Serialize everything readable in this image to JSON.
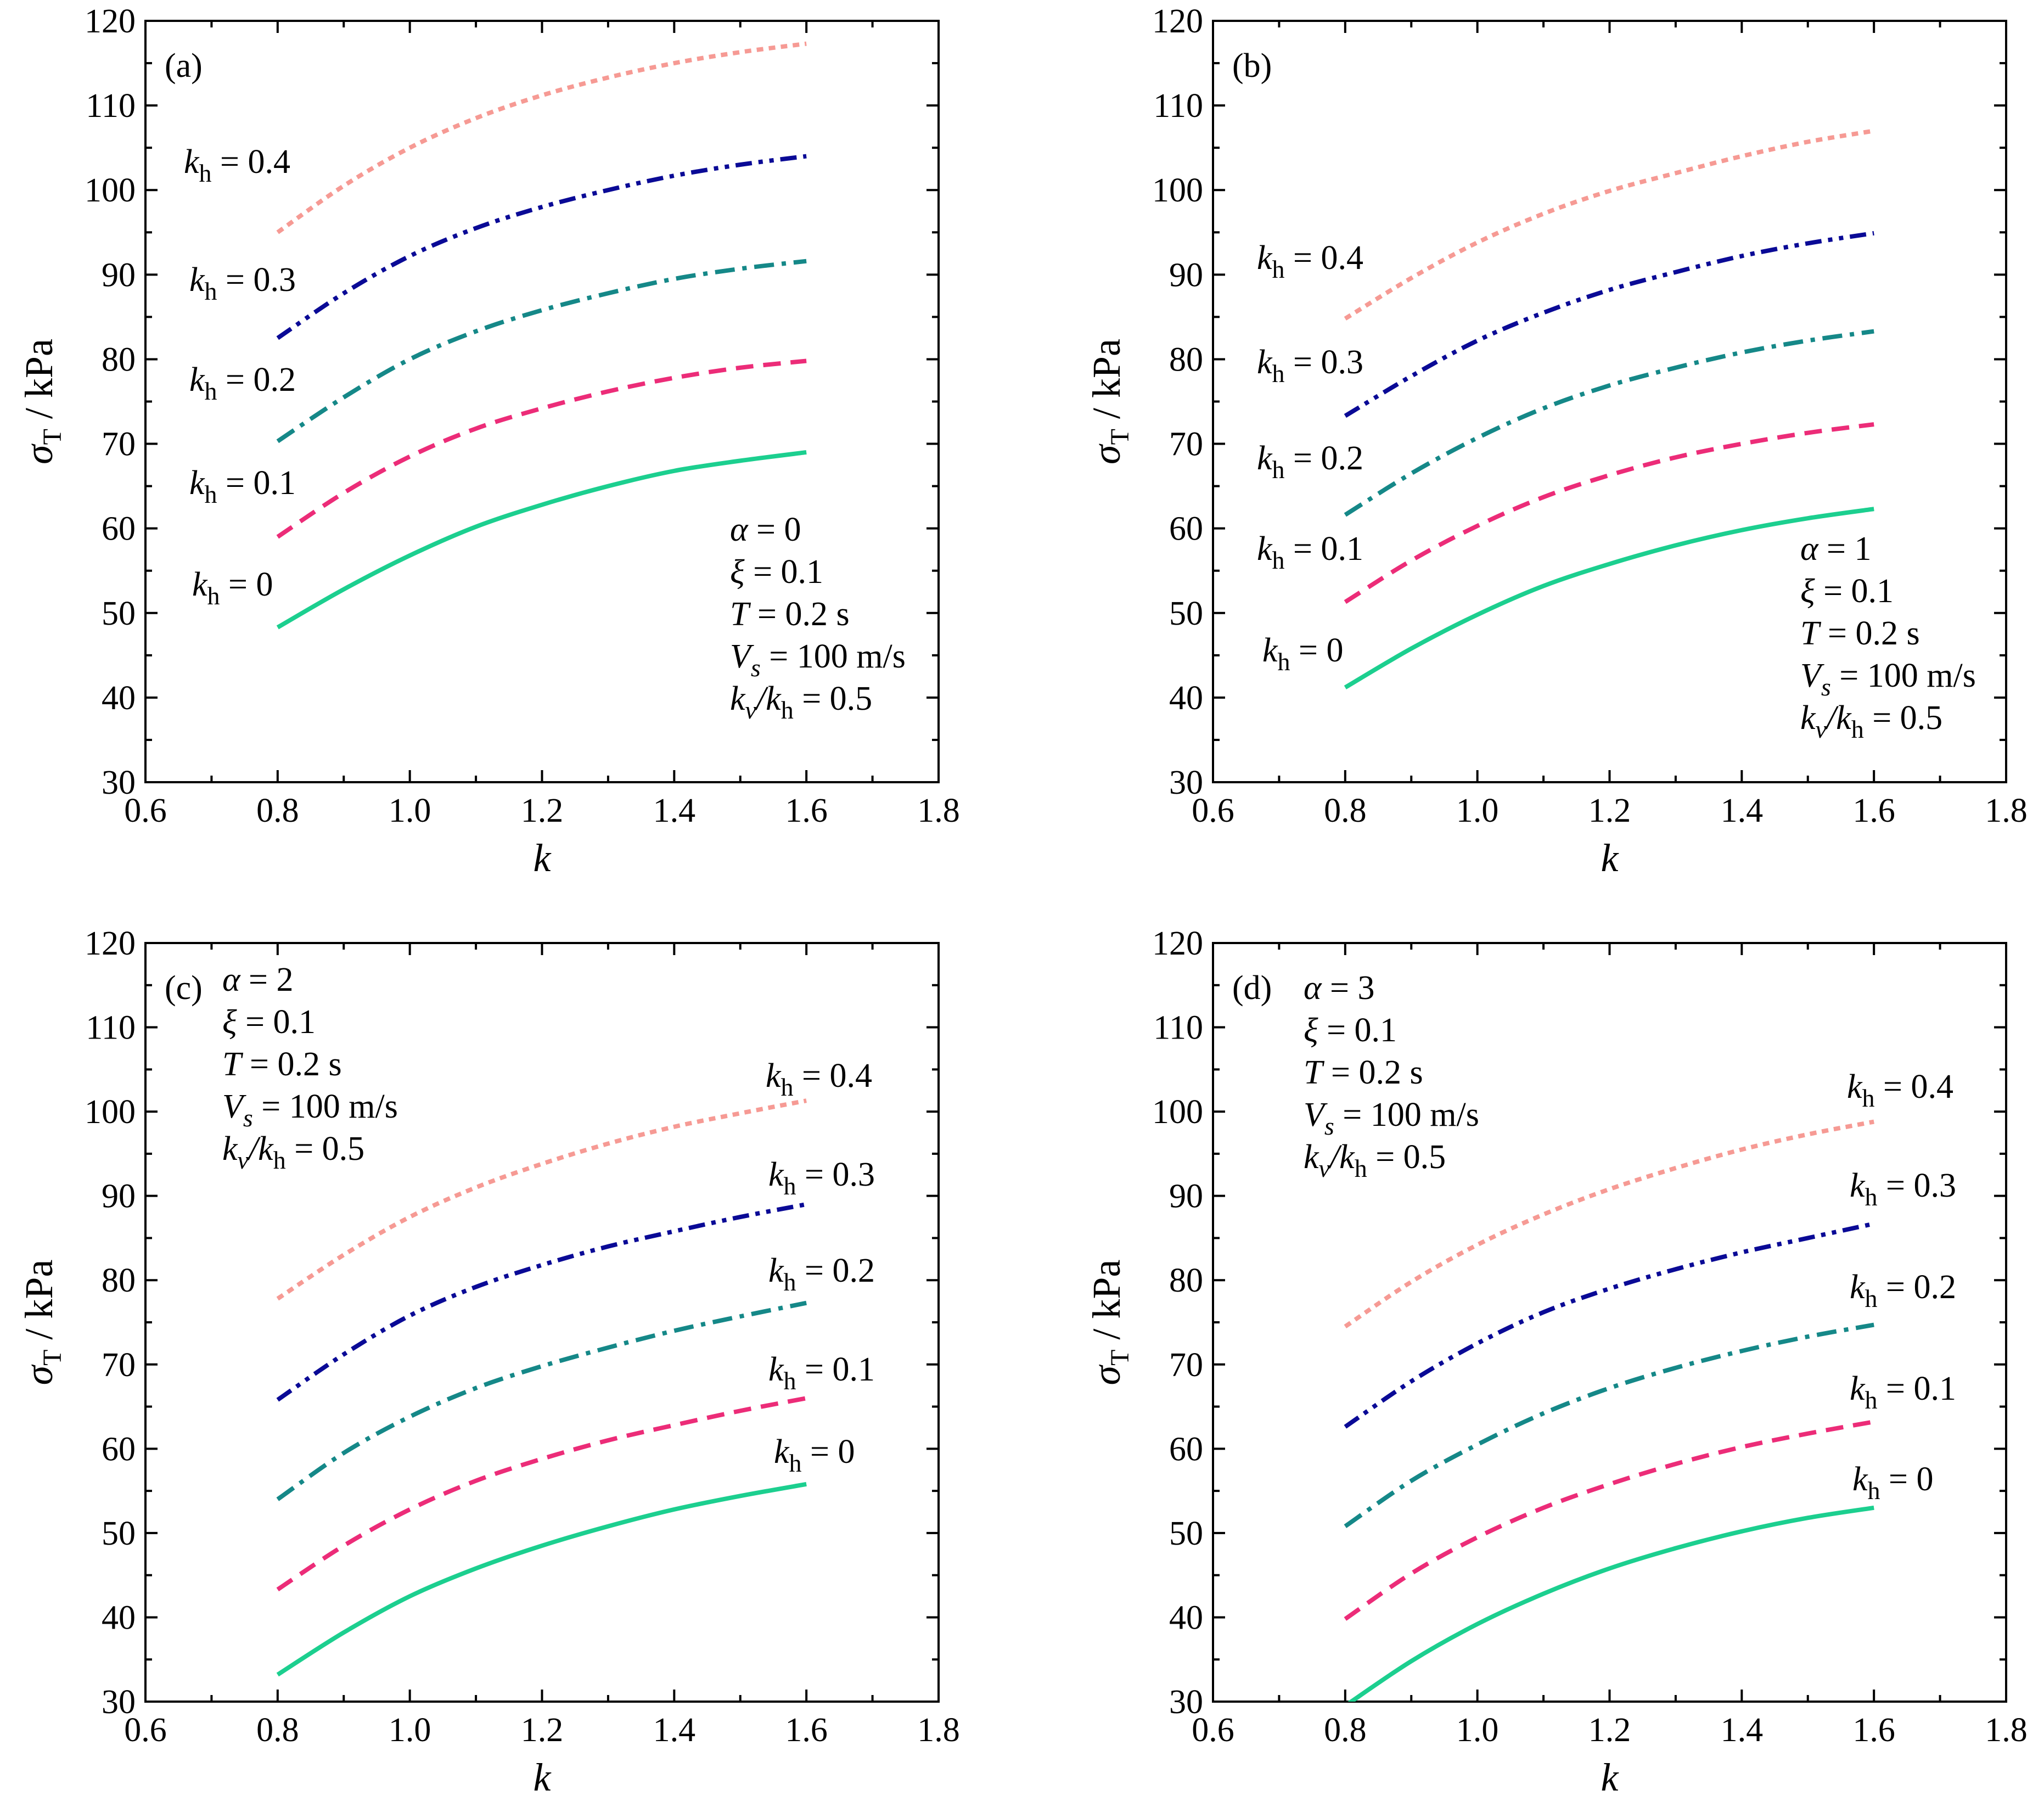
{
  "chart_data": [
    {
      "type": "line",
      "panel_label": "(a)",
      "xlabel": "k",
      "ylabel": {
        "main": "σ",
        "sub": "T",
        "rest": " / kPa"
      },
      "xlim": [
        0.6,
        1.8
      ],
      "ylim": [
        30,
        120
      ],
      "xticks": [
        "0.6",
        "0.8",
        "1.0",
        "1.2",
        "1.4",
        "1.6",
        "1.8"
      ],
      "yticks": [
        "30",
        "40",
        "50",
        "60",
        "70",
        "80",
        "90",
        "100",
        "110",
        "120"
      ],
      "grid": false,
      "legend": "none",
      "x": [
        0.8,
        0.9,
        1.0,
        1.1,
        1.2,
        1.3,
        1.4,
        1.5,
        1.6
      ],
      "series": [
        {
          "name": "kh = 0",
          "label": {
            "k": "k",
            "sub": "h",
            "val": " = 0"
          },
          "color": "#1ccf8f",
          "dash": "solid",
          "values": [
            48.3,
            52.8,
            56.8,
            60.2,
            62.8,
            65.0,
            66.8,
            68.0,
            69.0
          ]
        },
        {
          "name": "kh = 0.1",
          "label": {
            "k": "k",
            "sub": "h",
            "val": " = 0.1"
          },
          "color": "#ec2c78",
          "dash": "dash",
          "values": [
            59.0,
            64.2,
            68.5,
            71.8,
            74.2,
            76.2,
            77.8,
            79.0,
            79.8
          ]
        },
        {
          "name": "kh = 0.2",
          "label": {
            "k": "k",
            "sub": "h",
            "val": " = 0.2"
          },
          "color": "#158888",
          "dash": "dashdot",
          "values": [
            70.3,
            75.5,
            80.0,
            83.3,
            85.8,
            87.8,
            89.5,
            90.7,
            91.6
          ]
        },
        {
          "name": "kh = 0.3",
          "label": {
            "k": "k",
            "sub": "h",
            "val": " = 0.3"
          },
          "color": "#0a0a96",
          "dash": "dashdotdot",
          "values": [
            82.5,
            87.8,
            92.2,
            95.5,
            98.0,
            100.0,
            101.7,
            103.0,
            104.0
          ]
        },
        {
          "name": "kh = 0.4",
          "label": {
            "k": "k",
            "sub": "h",
            "val": " = 0.4"
          },
          "color": "#f69a94",
          "dash": "dot",
          "values": [
            95.0,
            100.5,
            105.0,
            108.5,
            111.2,
            113.3,
            115.0,
            116.3,
            117.3
          ]
        }
      ],
      "params": [
        {
          "sym": "α",
          "sub": "",
          "rest": " = 0"
        },
        {
          "sym": "ξ",
          "sub": "",
          "rest": " = 0.1"
        },
        {
          "sym": "T",
          "sub": "",
          "rest": " = 0.2 s"
        },
        {
          "sym": "V",
          "sub": "s",
          "rest": " = 100 m/s"
        },
        {
          "sym": "k",
          "sub": "v",
          "rest2sym": "/k",
          "rest2sub": "h",
          "rest": " = 0.5"
        }
      ]
    },
    {
      "type": "line",
      "panel_label": "(b)",
      "xlabel": "k",
      "ylabel": {
        "main": "σ",
        "sub": "T",
        "rest": " / kPa"
      },
      "xlim": [
        0.6,
        1.8
      ],
      "ylim": [
        30,
        120
      ],
      "xticks": [
        "0.6",
        "0.8",
        "1.0",
        "1.2",
        "1.4",
        "1.6",
        "1.8"
      ],
      "yticks": [
        "30",
        "40",
        "50",
        "60",
        "70",
        "80",
        "90",
        "100",
        "110",
        "120"
      ],
      "grid": false,
      "legend": "none",
      "x": [
        0.8,
        0.9,
        1.0,
        1.1,
        1.2,
        1.3,
        1.4,
        1.5,
        1.6
      ],
      "series": [
        {
          "name": "kh = 0",
          "label": {
            "k": "k",
            "sub": "h",
            "val": " = 0"
          },
          "color": "#1ccf8f",
          "dash": "solid",
          "values": [
            41.2,
            45.8,
            49.8,
            53.2,
            55.8,
            58.0,
            59.8,
            61.2,
            62.3
          ]
        },
        {
          "name": "kh = 0.1",
          "label": {
            "k": "k",
            "sub": "h",
            "val": " = 0.1"
          },
          "color": "#ec2c78",
          "dash": "dash",
          "values": [
            51.3,
            56.2,
            60.3,
            63.7,
            66.3,
            68.4,
            70.0,
            71.3,
            72.3
          ]
        },
        {
          "name": "kh = 0.2",
          "label": {
            "k": "k",
            "sub": "h",
            "val": " = 0.2"
          },
          "color": "#158888",
          "dash": "dashdot",
          "values": [
            61.6,
            66.5,
            70.7,
            74.2,
            76.9,
            79.0,
            80.8,
            82.2,
            83.3
          ]
        },
        {
          "name": "kh = 0.3",
          "label": {
            "k": "k",
            "sub": "h",
            "val": " = 0.3"
          },
          "color": "#0a0a96",
          "dash": "dashdotdot",
          "values": [
            73.3,
            78.0,
            82.2,
            85.5,
            88.2,
            90.3,
            92.2,
            93.7,
            94.9
          ]
        },
        {
          "name": "kh = 0.4",
          "label": {
            "k": "k",
            "sub": "h",
            "val": " = 0.4"
          },
          "color": "#f69a94",
          "dash": "dot",
          "values": [
            84.8,
            89.6,
            93.8,
            97.2,
            99.9,
            102.0,
            104.0,
            105.7,
            107.0
          ]
        }
      ],
      "params": [
        {
          "sym": "α",
          "sub": "",
          "rest": " = 1"
        },
        {
          "sym": "ξ",
          "sub": "",
          "rest": " = 0.1"
        },
        {
          "sym": "T",
          "sub": "",
          "rest": " = 0.2 s"
        },
        {
          "sym": "V",
          "sub": "s",
          "rest": " = 100 m/s"
        },
        {
          "sym": "k",
          "sub": "v",
          "rest2sym": "/k",
          "rest2sub": "h",
          "rest": " = 0.5"
        }
      ]
    },
    {
      "type": "line",
      "panel_label": "(c)",
      "xlabel": "k",
      "ylabel": {
        "main": "σ",
        "sub": "T",
        "rest": " / kPa"
      },
      "xlim": [
        0.6,
        1.8
      ],
      "ylim": [
        30,
        120
      ],
      "xticks": [
        "0.6",
        "0.8",
        "1.0",
        "1.2",
        "1.4",
        "1.6",
        "1.8"
      ],
      "yticks": [
        "30",
        "40",
        "50",
        "60",
        "70",
        "80",
        "90",
        "100",
        "110",
        "120"
      ],
      "grid": false,
      "legend": "none",
      "x": [
        0.8,
        0.9,
        1.0,
        1.1,
        1.2,
        1.3,
        1.4,
        1.5,
        1.6
      ],
      "series": [
        {
          "name": "kh = 0",
          "label": {
            "k": "k",
            "sub": "h",
            "val": " = 0"
          },
          "color": "#1ccf8f",
          "dash": "solid",
          "values": [
            33.2,
            38.2,
            42.5,
            45.8,
            48.5,
            50.8,
            52.8,
            54.4,
            55.8
          ]
        },
        {
          "name": "kh = 0.1",
          "label": {
            "k": "k",
            "sub": "h",
            "val": " = 0.1"
          },
          "color": "#ec2c78",
          "dash": "dash",
          "values": [
            43.3,
            48.5,
            52.8,
            56.2,
            58.8,
            61.0,
            62.8,
            64.5,
            66.0
          ]
        },
        {
          "name": "kh = 0.2",
          "label": {
            "k": "k",
            "sub": "h",
            "val": " = 0.2"
          },
          "color": "#158888",
          "dash": "dashdot",
          "values": [
            54.0,
            59.5,
            63.8,
            67.2,
            69.8,
            72.0,
            74.0,
            75.7,
            77.3
          ]
        },
        {
          "name": "kh = 0.3",
          "label": {
            "k": "k",
            "sub": "h",
            "val": " = 0.3"
          },
          "color": "#0a0a96",
          "dash": "dashdotdot",
          "values": [
            65.8,
            71.2,
            75.8,
            79.2,
            81.8,
            84.0,
            85.8,
            87.5,
            89.0
          ]
        },
        {
          "name": "kh = 0.4",
          "label": {
            "k": "k",
            "sub": "h",
            "val": " = 0.4"
          },
          "color": "#f69a94",
          "dash": "dot",
          "values": [
            77.8,
            83.0,
            87.5,
            91.0,
            93.8,
            96.2,
            98.2,
            99.8,
            101.3
          ]
        }
      ],
      "params": [
        {
          "sym": "α",
          "sub": "",
          "rest": " = 2"
        },
        {
          "sym": "ξ",
          "sub": "",
          "rest": " = 0.1"
        },
        {
          "sym": "T",
          "sub": "",
          "rest": " = 0.2 s"
        },
        {
          "sym": "V",
          "sub": "s",
          "rest": " = 100 m/s"
        },
        {
          "sym": "k",
          "sub": "v",
          "rest2sym": "/k",
          "rest2sub": "h",
          "rest": " = 0.5"
        }
      ]
    },
    {
      "type": "line",
      "panel_label": "(d)",
      "xlabel": "k",
      "ylabel": {
        "main": "σ",
        "sub": "T",
        "rest": " / kPa"
      },
      "xlim": [
        0.6,
        1.8
      ],
      "ylim": [
        30,
        120
      ],
      "xticks": [
        "0.6",
        "0.8",
        "1.0",
        "1.2",
        "1.4",
        "1.6",
        "1.8"
      ],
      "yticks": [
        "30",
        "40",
        "50",
        "60",
        "70",
        "80",
        "90",
        "100",
        "110",
        "120"
      ],
      "grid": false,
      "legend": "none",
      "x": [
        0.8,
        0.9,
        1.0,
        1.1,
        1.2,
        1.3,
        1.4,
        1.5,
        1.6
      ],
      "series": [
        {
          "name": "kh = 0",
          "label": {
            "k": "k",
            "sub": "h",
            "val": " = 0"
          },
          "color": "#1ccf8f",
          "dash": "solid",
          "values": [
            29.5,
            34.8,
            39.2,
            42.8,
            45.8,
            48.2,
            50.2,
            51.8,
            53.0
          ]
        },
        {
          "name": "kh = 0.1",
          "label": {
            "k": "k",
            "sub": "h",
            "val": " = 0.1"
          },
          "color": "#ec2c78",
          "dash": "dash",
          "values": [
            39.8,
            45.2,
            49.5,
            53.0,
            55.8,
            58.2,
            60.2,
            61.8,
            63.2
          ]
        },
        {
          "name": "kh = 0.2",
          "label": {
            "k": "k",
            "sub": "h",
            "val": " = 0.2"
          },
          "color": "#158888",
          "dash": "dashdot",
          "values": [
            50.8,
            56.2,
            60.5,
            64.2,
            67.2,
            69.6,
            71.6,
            73.3,
            74.7
          ]
        },
        {
          "name": "kh = 0.3",
          "label": {
            "k": "k",
            "sub": "h",
            "val": " = 0.3"
          },
          "color": "#0a0a96",
          "dash": "dashdotdot",
          "values": [
            62.6,
            68.0,
            72.5,
            76.2,
            79.0,
            81.3,
            83.3,
            85.0,
            86.7
          ]
        },
        {
          "name": "kh = 0.4",
          "label": {
            "k": "k",
            "sub": "h",
            "val": " = 0.4"
          },
          "color": "#f69a94",
          "dash": "dot",
          "values": [
            74.5,
            79.8,
            84.2,
            87.8,
            90.8,
            93.3,
            95.5,
            97.3,
            98.8
          ]
        }
      ],
      "params": [
        {
          "sym": "α",
          "sub": "",
          "rest": " = 3"
        },
        {
          "sym": "ξ",
          "sub": "",
          "rest": " = 0.1"
        },
        {
          "sym": "T",
          "sub": "",
          "rest": " = 0.2 s"
        },
        {
          "sym": "V",
          "sub": "s",
          "rest": " = 100 m/s"
        },
        {
          "sym": "k",
          "sub": "v",
          "rest2sym": "/k",
          "rest2sub": "h",
          "rest": " = 0.5"
        }
      ]
    }
  ]
}
